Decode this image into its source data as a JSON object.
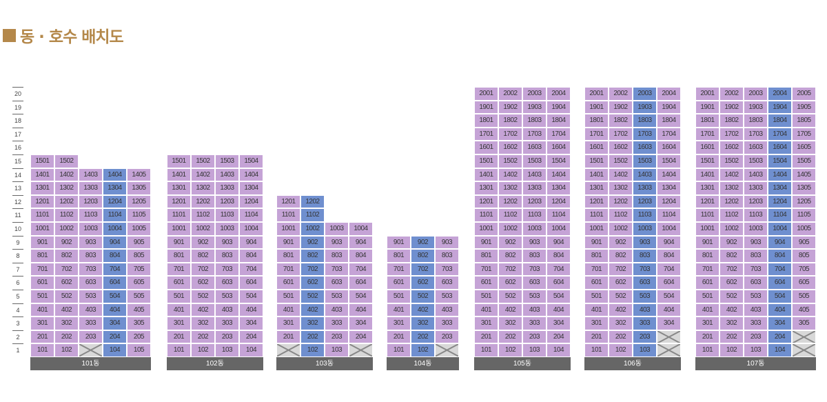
{
  "title": "동 · 호수 배치도",
  "colors": {
    "accent": "#b4884a",
    "unit": "#c5a3d6",
    "highlight": "#6f8fcf",
    "unavailable": "#d8d8d8",
    "label_bar": "#666666"
  },
  "floors": [
    "20",
    "19",
    "18",
    "17",
    "16",
    "15",
    "14",
    "13",
    "12",
    "11",
    "10",
    "9",
    "8",
    "7",
    "6",
    "5",
    "4",
    "3",
    "2",
    "1"
  ],
  "buildings": [
    {
      "name": "101동",
      "units": [
        [
          "1501",
          "1502",
          null,
          null,
          null
        ],
        [
          "1401",
          "1402",
          "1403",
          "1404",
          "1405"
        ],
        [
          "1301",
          "1302",
          "1303",
          "1304",
          "1305"
        ],
        [
          "1201",
          "1202",
          "1203",
          "1204",
          "1205"
        ],
        [
          "1101",
          "1102",
          "1103",
          "1104",
          "1105"
        ],
        [
          "1001",
          "1002",
          "1003",
          "1004",
          "1005"
        ],
        [
          "901",
          "902",
          "903",
          "904",
          "905"
        ],
        [
          "801",
          "802",
          "803",
          "804",
          "805"
        ],
        [
          "701",
          "702",
          "703",
          "704",
          "705"
        ],
        [
          "601",
          "602",
          "603",
          "604",
          "605"
        ],
        [
          "501",
          "502",
          "503",
          "504",
          "505"
        ],
        [
          "401",
          "402",
          "403",
          "404",
          "405"
        ],
        [
          "301",
          "302",
          "303",
          "304",
          "305"
        ],
        [
          "201",
          "202",
          "203",
          "204",
          "205"
        ],
        [
          "101",
          "102",
          "X",
          "104",
          "105"
        ]
      ],
      "highlight_col": 3
    },
    {
      "name": "102동",
      "units": [
        [
          "1501",
          "1502",
          "1503",
          "1504"
        ],
        [
          "1401",
          "1402",
          "1403",
          "1404"
        ],
        [
          "1301",
          "1302",
          "1303",
          "1304"
        ],
        [
          "1201",
          "1202",
          "1203",
          "1204"
        ],
        [
          "1101",
          "1102",
          "1103",
          "1104"
        ],
        [
          "1001",
          "1002",
          "1003",
          "1004"
        ],
        [
          "901",
          "902",
          "903",
          "904"
        ],
        [
          "801",
          "802",
          "803",
          "804"
        ],
        [
          "701",
          "702",
          "703",
          "704"
        ],
        [
          "601",
          "602",
          "603",
          "604"
        ],
        [
          "501",
          "502",
          "503",
          "504"
        ],
        [
          "401",
          "402",
          "403",
          "404"
        ],
        [
          "301",
          "302",
          "303",
          "304"
        ],
        [
          "201",
          "202",
          "203",
          "204"
        ],
        [
          "101",
          "102",
          "103",
          "104"
        ]
      ],
      "highlight_col": -1
    },
    {
      "name": "103동",
      "units": [
        [
          "1201",
          "1202",
          null,
          null
        ],
        [
          "1101",
          "1102",
          null,
          null
        ],
        [
          "1001",
          "1002",
          "1003",
          "1004"
        ],
        [
          "901",
          "902",
          "903",
          "904"
        ],
        [
          "801",
          "802",
          "803",
          "804"
        ],
        [
          "701",
          "702",
          "703",
          "704"
        ],
        [
          "601",
          "602",
          "603",
          "604"
        ],
        [
          "501",
          "502",
          "503",
          "504"
        ],
        [
          "401",
          "402",
          "403",
          "404"
        ],
        [
          "301",
          "302",
          "303",
          "304"
        ],
        [
          "201",
          "202",
          "203",
          "204"
        ],
        [
          "X",
          "102",
          "103",
          "X"
        ]
      ],
      "highlight_col": 1
    },
    {
      "name": "104동",
      "units": [
        [
          "901",
          "902",
          "903"
        ],
        [
          "801",
          "802",
          "803"
        ],
        [
          "701",
          "702",
          "703"
        ],
        [
          "601",
          "602",
          "603"
        ],
        [
          "501",
          "502",
          "503"
        ],
        [
          "401",
          "402",
          "403"
        ],
        [
          "301",
          "302",
          "303"
        ],
        [
          "201",
          "202",
          "203"
        ],
        [
          "101",
          "102",
          "X"
        ]
      ],
      "highlight_col": 1
    },
    {
      "name": "105동",
      "units": [
        [
          "2001",
          "2002",
          "2003",
          "2004"
        ],
        [
          "1901",
          "1902",
          "1903",
          "1904"
        ],
        [
          "1801",
          "1802",
          "1803",
          "1804"
        ],
        [
          "1701",
          "1702",
          "1703",
          "1704"
        ],
        [
          "1601",
          "1602",
          "1603",
          "1604"
        ],
        [
          "1501",
          "1502",
          "1503",
          "1504"
        ],
        [
          "1401",
          "1402",
          "1403",
          "1404"
        ],
        [
          "1301",
          "1302",
          "1303",
          "1304"
        ],
        [
          "1201",
          "1202",
          "1203",
          "1204"
        ],
        [
          "1101",
          "1102",
          "1103",
          "1104"
        ],
        [
          "1001",
          "1002",
          "1003",
          "1004"
        ],
        [
          "901",
          "902",
          "903",
          "904"
        ],
        [
          "801",
          "802",
          "803",
          "804"
        ],
        [
          "701",
          "702",
          "703",
          "704"
        ],
        [
          "601",
          "602",
          "603",
          "604"
        ],
        [
          "501",
          "502",
          "503",
          "504"
        ],
        [
          "401",
          "402",
          "403",
          "404"
        ],
        [
          "301",
          "302",
          "303",
          "304"
        ],
        [
          "201",
          "202",
          "203",
          "204"
        ],
        [
          "101",
          "102",
          "103",
          "104"
        ]
      ],
      "highlight_col": -1
    },
    {
      "name": "106동",
      "units": [
        [
          "2001",
          "2002",
          "2003",
          "2004"
        ],
        [
          "1901",
          "1902",
          "1903",
          "1904"
        ],
        [
          "1801",
          "1802",
          "1803",
          "1804"
        ],
        [
          "1701",
          "1702",
          "1703",
          "1704"
        ],
        [
          "1601",
          "1602",
          "1603",
          "1604"
        ],
        [
          "1501",
          "1502",
          "1503",
          "1504"
        ],
        [
          "1401",
          "1402",
          "1403",
          "1404"
        ],
        [
          "1301",
          "1302",
          "1303",
          "1304"
        ],
        [
          "1201",
          "1202",
          "1203",
          "1204"
        ],
        [
          "1101",
          "1102",
          "1103",
          "1104"
        ],
        [
          "1001",
          "1002",
          "1003",
          "1004"
        ],
        [
          "901",
          "902",
          "903",
          "904"
        ],
        [
          "801",
          "802",
          "803",
          "804"
        ],
        [
          "701",
          "702",
          "703",
          "704"
        ],
        [
          "601",
          "602",
          "603",
          "604"
        ],
        [
          "501",
          "502",
          "503",
          "504"
        ],
        [
          "401",
          "402",
          "403",
          "404"
        ],
        [
          "301",
          "302",
          "303",
          "304"
        ],
        [
          "201",
          "202",
          "203",
          "X"
        ],
        [
          "101",
          "102",
          "103",
          "X"
        ]
      ],
      "highlight_col": 2
    },
    {
      "name": "107동",
      "units": [
        [
          "2001",
          "2002",
          "2003",
          "2004",
          "2005"
        ],
        [
          "1901",
          "1902",
          "1903",
          "1904",
          "1905"
        ],
        [
          "1801",
          "1802",
          "1803",
          "1804",
          "1805"
        ],
        [
          "1701",
          "1702",
          "1703",
          "1704",
          "1705"
        ],
        [
          "1601",
          "1602",
          "1603",
          "1604",
          "1605"
        ],
        [
          "1501",
          "1502",
          "1503",
          "1504",
          "1505"
        ],
        [
          "1401",
          "1402",
          "1403",
          "1404",
          "1405"
        ],
        [
          "1301",
          "1302",
          "1303",
          "1304",
          "1305"
        ],
        [
          "1201",
          "1202",
          "1203",
          "1204",
          "1205"
        ],
        [
          "1101",
          "1102",
          "1103",
          "1104",
          "1105"
        ],
        [
          "1001",
          "1002",
          "1003",
          "1004",
          "1005"
        ],
        [
          "901",
          "902",
          "903",
          "904",
          "905"
        ],
        [
          "801",
          "802",
          "803",
          "804",
          "805"
        ],
        [
          "701",
          "702",
          "703",
          "704",
          "705"
        ],
        [
          "601",
          "602",
          "603",
          "604",
          "605"
        ],
        [
          "501",
          "502",
          "503",
          "504",
          "505"
        ],
        [
          "401",
          "402",
          "403",
          "404",
          "405"
        ],
        [
          "301",
          "302",
          "303",
          "304",
          "305"
        ],
        [
          "201",
          "202",
          "203",
          "204",
          "X"
        ],
        [
          "101",
          "102",
          "103",
          "104",
          "X"
        ]
      ],
      "highlight_col": 3
    }
  ]
}
